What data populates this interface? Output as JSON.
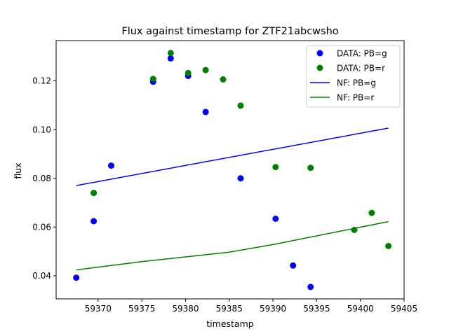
{
  "chart_data": {
    "type": "scatter",
    "title": "Flux against timestamp for ZTF21abcwsho",
    "xlabel": "timestamp",
    "ylabel": "flux",
    "xlim": [
      59365.2,
      59405
    ],
    "ylim": [
      0.0305,
      0.1365
    ],
    "xticks": [
      59370,
      59375,
      59380,
      59385,
      59390,
      59395,
      59400,
      59405
    ],
    "yticks": [
      0.04,
      0.06,
      0.08,
      0.1,
      0.12
    ],
    "ytick_labels": [
      "0.04",
      "0.06",
      "0.08",
      "0.10",
      "0.12"
    ],
    "xtick_labels": [
      "59370",
      "59375",
      "59380",
      "59385",
      "59390",
      "59395",
      "59400",
      "59405"
    ],
    "grid": false,
    "legend_position": "top-right",
    "colors": {
      "g": "#0000ff",
      "r": "#008000"
    },
    "series": [
      {
        "name": "DATA: PB=g",
        "kind": "points",
        "color": "#0000ff",
        "x": [
          59367.5,
          59369.5,
          59371.5,
          59376.3,
          59378.3,
          59380.3,
          59382.3,
          59386.3,
          59390.3,
          59392.3,
          59394.3
        ],
        "y": [
          0.0392,
          0.0624,
          0.0852,
          0.1196,
          0.1292,
          0.122,
          0.1072,
          0.08,
          0.0634,
          0.0442,
          0.0354
        ]
      },
      {
        "name": "DATA: PB=r",
        "kind": "points",
        "color": "#008000",
        "x": [
          59369.5,
          59376.3,
          59378.3,
          59380.3,
          59382.3,
          59384.3,
          59386.3,
          59390.3,
          59394.3,
          59399.3,
          59401.3,
          59403.2
        ],
        "y": [
          0.074,
          0.1208,
          0.1314,
          0.1232,
          0.1244,
          0.1206,
          0.1098,
          0.0846,
          0.0843,
          0.0588,
          0.0658,
          0.0522
        ]
      },
      {
        "name": "NF: PB=g",
        "kind": "line",
        "color": "#0000ff",
        "x": [
          59367.5,
          59403.2
        ],
        "y": [
          0.077,
          0.1006
        ]
      },
      {
        "name": "NF: PB=r",
        "kind": "line",
        "color": "#008000",
        "x": [
          59367.5,
          59375.0,
          59385.0,
          59390.0,
          59403.2
        ],
        "y": [
          0.0424,
          0.0458,
          0.0497,
          0.0528,
          0.0622
        ]
      }
    ]
  }
}
